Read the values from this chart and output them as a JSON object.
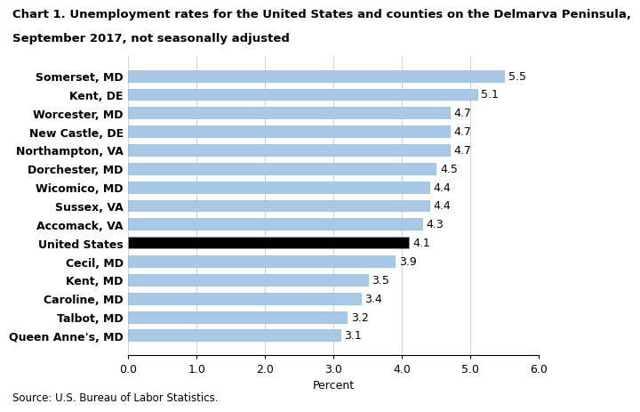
{
  "title_line1": "Chart 1. Unemployment rates for the United States and counties on the Delmarva Peninsula,",
  "title_line2": "September 2017, not seasonally adjusted",
  "categories": [
    "Queen Anne's, MD",
    "Talbot, MD",
    "Caroline, MD",
    "Kent, MD",
    "Cecil, MD",
    "United States",
    "Accomack, VA",
    "Sussex, VA",
    "Wicomico, MD",
    "Dorchester, MD",
    "Northampton, VA",
    "New Castle, DE",
    "Worcester, MD",
    "Kent, DE",
    "Somerset, MD"
  ],
  "values": [
    3.1,
    3.2,
    3.4,
    3.5,
    3.9,
    4.1,
    4.3,
    4.4,
    4.4,
    4.5,
    4.7,
    4.7,
    4.7,
    5.1,
    5.5
  ],
  "bar_colors": [
    "#a8c8e8",
    "#a8c8e8",
    "#a8c8e8",
    "#a8c8e8",
    "#a8c8e8",
    "#000000",
    "#a8c8e8",
    "#a8c8e8",
    "#a8c8e8",
    "#a8c8e8",
    "#a8c8e8",
    "#a8c8e8",
    "#a8c8e8",
    "#a8c8e8",
    "#a8c8e8"
  ],
  "xlabel": "Percent",
  "xlim": [
    0.0,
    6.0
  ],
  "xticks": [
    0.0,
    1.0,
    2.0,
    3.0,
    4.0,
    5.0,
    6.0
  ],
  "source": "Source: U.S. Bureau of Labor Statistics.",
  "title_fontsize": 9.5,
  "ytick_fontsize": 9,
  "xtick_fontsize": 9,
  "label_fontsize": 9,
  "source_fontsize": 8.5,
  "bar_height": 0.62,
  "background_color": "#ffffff"
}
